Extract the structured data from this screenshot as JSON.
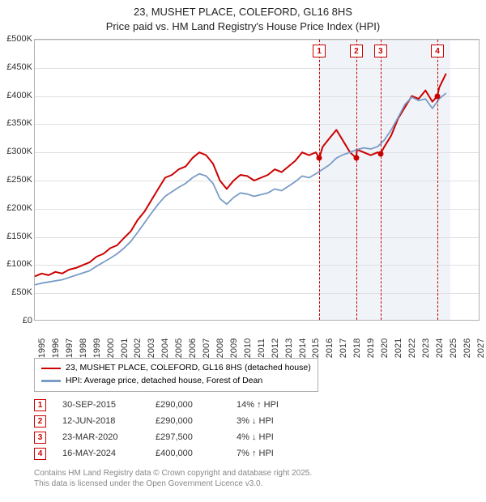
{
  "title": {
    "line1": "23, MUSHET PLACE, COLEFORD, GL16 8HS",
    "line2": "Price paid vs. HM Land Registry's House Price Index (HPI)"
  },
  "chart": {
    "type": "line",
    "xlim": [
      1995,
      2027.5
    ],
    "ylim": [
      0,
      500000
    ],
    "ytick_step": 50000,
    "yticks": [
      "£0",
      "£50K",
      "£100K",
      "£150K",
      "£200K",
      "£250K",
      "£300K",
      "£350K",
      "£400K",
      "£450K",
      "£500K"
    ],
    "xticks": [
      "1995",
      "1996",
      "1997",
      "1998",
      "1999",
      "2000",
      "2001",
      "2002",
      "2003",
      "2004",
      "2005",
      "2006",
      "2007",
      "2008",
      "2009",
      "2010",
      "2011",
      "2012",
      "2013",
      "2014",
      "2015",
      "2016",
      "2017",
      "2018",
      "2019",
      "2020",
      "2021",
      "2022",
      "2023",
      "2024",
      "2025",
      "2026",
      "2027"
    ],
    "grid_color": "#e0e0e0",
    "background_color": "#ffffff",
    "shaded_color": "#e8eef6",
    "shaded_region": {
      "start": 2015.75,
      "end": 2025.3
    },
    "series": [
      {
        "name": "23, MUSHET PLACE, COLEFORD, GL16 8HS (detached house)",
        "color": "#cc0000",
        "line_width": 2,
        "points": [
          [
            1995,
            80000
          ],
          [
            1995.5,
            85000
          ],
          [
            1996,
            82000
          ],
          [
            1996.5,
            88000
          ],
          [
            1997,
            85000
          ],
          [
            1997.5,
            92000
          ],
          [
            1998,
            95000
          ],
          [
            1998.5,
            100000
          ],
          [
            1999,
            105000
          ],
          [
            1999.5,
            115000
          ],
          [
            2000,
            120000
          ],
          [
            2000.5,
            130000
          ],
          [
            2001,
            135000
          ],
          [
            2001.5,
            148000
          ],
          [
            2002,
            160000
          ],
          [
            2002.5,
            180000
          ],
          [
            2003,
            195000
          ],
          [
            2003.5,
            215000
          ],
          [
            2004,
            235000
          ],
          [
            2004.5,
            255000
          ],
          [
            2005,
            260000
          ],
          [
            2005.5,
            270000
          ],
          [
            2006,
            275000
          ],
          [
            2006.5,
            290000
          ],
          [
            2007,
            300000
          ],
          [
            2007.5,
            295000
          ],
          [
            2008,
            280000
          ],
          [
            2008.5,
            250000
          ],
          [
            2009,
            235000
          ],
          [
            2009.5,
            250000
          ],
          [
            2010,
            260000
          ],
          [
            2010.5,
            258000
          ],
          [
            2011,
            250000
          ],
          [
            2011.5,
            255000
          ],
          [
            2012,
            260000
          ],
          [
            2012.5,
            270000
          ],
          [
            2013,
            265000
          ],
          [
            2013.5,
            275000
          ],
          [
            2014,
            285000
          ],
          [
            2014.5,
            300000
          ],
          [
            2015,
            295000
          ],
          [
            2015.5,
            300000
          ],
          [
            2015.75,
            290000
          ],
          [
            2016,
            310000
          ],
          [
            2016.5,
            325000
          ],
          [
            2017,
            340000
          ],
          [
            2017.5,
            320000
          ],
          [
            2018,
            300000
          ],
          [
            2018.45,
            290000
          ],
          [
            2018.5,
            305000
          ],
          [
            2019,
            300000
          ],
          [
            2019.5,
            295000
          ],
          [
            2020,
            300000
          ],
          [
            2020.22,
            297500
          ],
          [
            2020.5,
            310000
          ],
          [
            2021,
            330000
          ],
          [
            2021.5,
            360000
          ],
          [
            2022,
            380000
          ],
          [
            2022.5,
            400000
          ],
          [
            2023,
            395000
          ],
          [
            2023.5,
            410000
          ],
          [
            2024,
            390000
          ],
          [
            2024.37,
            400000
          ],
          [
            2024.5,
            415000
          ],
          [
            2025,
            440000
          ]
        ]
      },
      {
        "name": "HPI: Average price, detached house, Forest of Dean",
        "color": "#7a9cc6",
        "line_width": 1.8,
        "points": [
          [
            1995,
            65000
          ],
          [
            1995.5,
            68000
          ],
          [
            1996,
            70000
          ],
          [
            1996.5,
            72000
          ],
          [
            1997,
            74000
          ],
          [
            1997.5,
            78000
          ],
          [
            1998,
            82000
          ],
          [
            1998.5,
            86000
          ],
          [
            1999,
            90000
          ],
          [
            1999.5,
            98000
          ],
          [
            2000,
            105000
          ],
          [
            2000.5,
            112000
          ],
          [
            2001,
            120000
          ],
          [
            2001.5,
            130000
          ],
          [
            2002,
            142000
          ],
          [
            2002.5,
            158000
          ],
          [
            2003,
            175000
          ],
          [
            2003.5,
            192000
          ],
          [
            2004,
            208000
          ],
          [
            2004.5,
            222000
          ],
          [
            2005,
            230000
          ],
          [
            2005.5,
            238000
          ],
          [
            2006,
            245000
          ],
          [
            2006.5,
            255000
          ],
          [
            2007,
            262000
          ],
          [
            2007.5,
            258000
          ],
          [
            2008,
            245000
          ],
          [
            2008.5,
            218000
          ],
          [
            2009,
            208000
          ],
          [
            2009.5,
            220000
          ],
          [
            2010,
            228000
          ],
          [
            2010.5,
            226000
          ],
          [
            2011,
            222000
          ],
          [
            2011.5,
            225000
          ],
          [
            2012,
            228000
          ],
          [
            2012.5,
            235000
          ],
          [
            2013,
            232000
          ],
          [
            2013.5,
            240000
          ],
          [
            2014,
            248000
          ],
          [
            2014.5,
            258000
          ],
          [
            2015,
            255000
          ],
          [
            2015.5,
            262000
          ],
          [
            2016,
            270000
          ],
          [
            2016.5,
            278000
          ],
          [
            2017,
            290000
          ],
          [
            2017.5,
            296000
          ],
          [
            2018,
            300000
          ],
          [
            2018.5,
            305000
          ],
          [
            2019,
            308000
          ],
          [
            2019.5,
            306000
          ],
          [
            2020,
            310000
          ],
          [
            2020.5,
            322000
          ],
          [
            2021,
            340000
          ],
          [
            2021.5,
            362000
          ],
          [
            2022,
            385000
          ],
          [
            2022.5,
            398000
          ],
          [
            2023,
            392000
          ],
          [
            2023.5,
            395000
          ],
          [
            2024,
            378000
          ],
          [
            2024.5,
            395000
          ],
          [
            2025,
            405000
          ]
        ]
      }
    ],
    "sale_markers": [
      {
        "n": "1",
        "x": 2015.75,
        "y": 290000
      },
      {
        "n": "2",
        "x": 2018.45,
        "y": 290000
      },
      {
        "n": "3",
        "x": 2020.22,
        "y": 297500
      },
      {
        "n": "4",
        "x": 2024.37,
        "y": 400000
      }
    ]
  },
  "legend": {
    "items": [
      {
        "color": "#cc0000",
        "label": "23, MUSHET PLACE, COLEFORD, GL16 8HS (detached house)"
      },
      {
        "color": "#7a9cc6",
        "label": "HPI: Average price, detached house, Forest of Dean"
      }
    ]
  },
  "datapoints": [
    {
      "n": "1",
      "date": "30-SEP-2015",
      "price": "£290,000",
      "change": "14% ↑ HPI"
    },
    {
      "n": "2",
      "date": "12-JUN-2018",
      "price": "£290,000",
      "change": "3% ↓ HPI"
    },
    {
      "n": "3",
      "date": "23-MAR-2020",
      "price": "£297,500",
      "change": "4% ↓ HPI"
    },
    {
      "n": "4",
      "date": "16-MAY-2024",
      "price": "£400,000",
      "change": "7% ↑ HPI"
    }
  ],
  "footer": {
    "line1": "Contains HM Land Registry data © Crown copyright and database right 2025.",
    "line2": "This data is licensed under the Open Government Licence v3.0."
  }
}
